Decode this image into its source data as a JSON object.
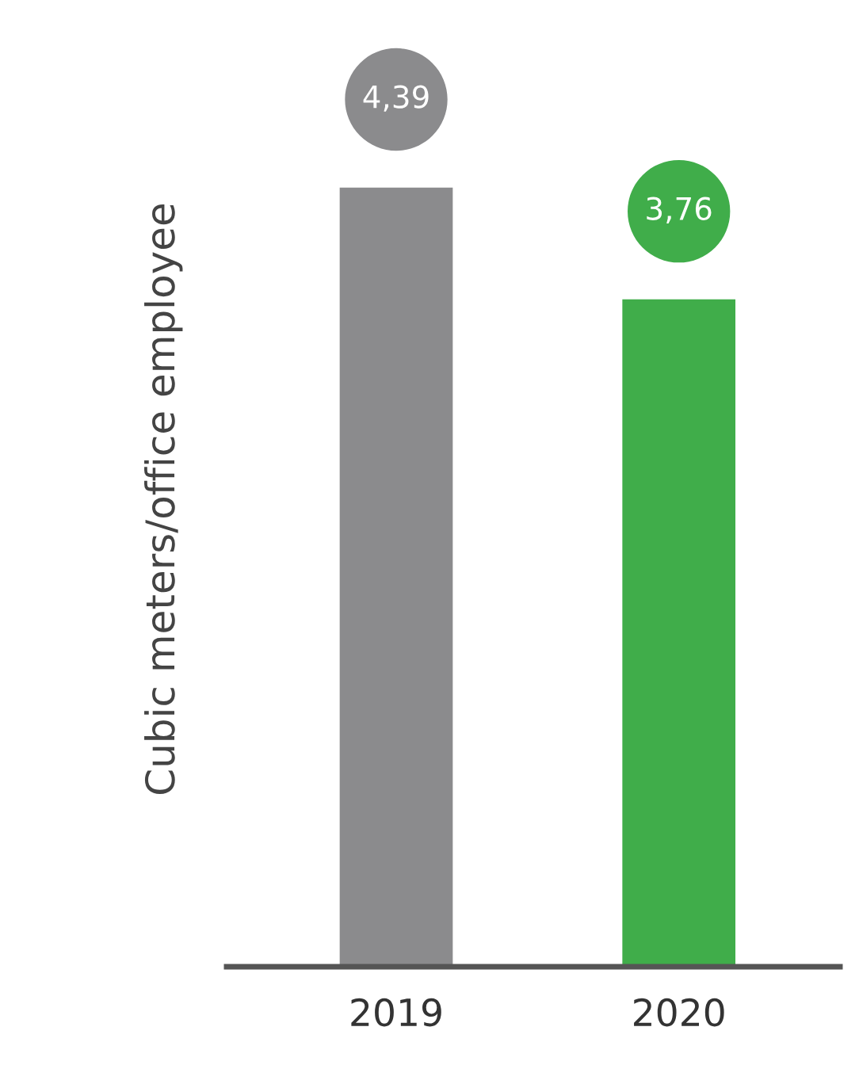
{
  "chart_data": {
    "type": "bar",
    "ylabel": "Cubic meters/office employee",
    "categories": [
      "2019",
      "2020"
    ],
    "values": [
      4.39,
      3.76
    ],
    "colors": [
      "#8b8b8d",
      "#40ad4a"
    ],
    "value_labels": [
      "4,39",
      "3,76"
    ],
    "grid": false,
    "legend": false
  }
}
